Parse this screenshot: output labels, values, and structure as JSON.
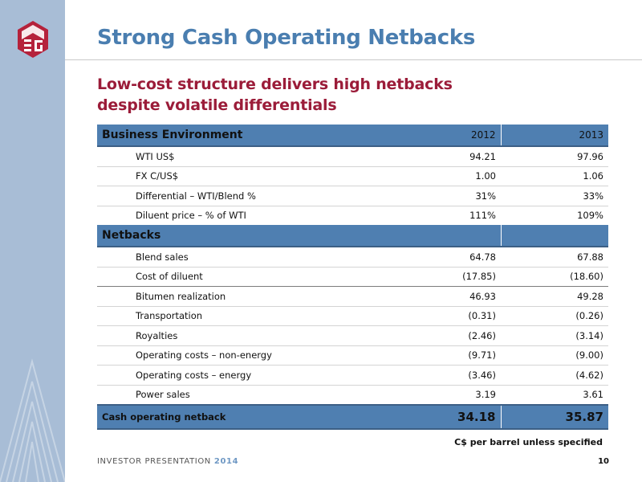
{
  "slide": {
    "title": "Strong Cash Operating Netbacks",
    "subtitle_line1": "Low-cost structure delivers high netbacks",
    "subtitle_line2": "despite volatile differentials",
    "note": "C$ per barrel unless specified",
    "footer_label": "INVESTOR PRESENTATION",
    "footer_year": "2014",
    "page_number": "10"
  },
  "colors": {
    "accent_blue": "#4f7fb1",
    "title_blue": "#4a7eb0",
    "subtitle_red": "#9b1c39",
    "sidebar": "#a8bdd6",
    "logo_red": "#b5223b"
  },
  "table": {
    "business_environment": {
      "label": "Business Environment",
      "col1": "2012",
      "col2": "2013",
      "rows": [
        {
          "label": "WTI US$",
          "v1": "94.21",
          "v2": "97.96"
        },
        {
          "label": "FX C/US$",
          "v1": "1.00",
          "v2": "1.06"
        },
        {
          "label": "Differential – WTI/Blend %",
          "v1": "31%",
          "v2": "33%"
        },
        {
          "label": "Diluent price – % of WTI",
          "v1": "111%",
          "v2": "109%"
        }
      ]
    },
    "netbacks": {
      "label": "Netbacks",
      "rows": [
        {
          "label": "Blend sales",
          "v1": "64.78",
          "v2": "67.88"
        },
        {
          "label": "Cost of diluent",
          "v1": "(17.85)",
          "v2": "(18.60)"
        },
        {
          "label": "Bitumen realization",
          "v1": "46.93",
          "v2": "49.28"
        },
        {
          "label": "Transportation",
          "v1": "(0.31)",
          "v2": "(0.26)"
        },
        {
          "label": "Royalties",
          "v1": "(2.46)",
          "v2": "(3.14)"
        },
        {
          "label": "Operating costs – non-energy",
          "v1": "(9.71)",
          "v2": "(9.00)"
        },
        {
          "label": "Operating costs – energy",
          "v1": "(3.46)",
          "v2": "(4.62)"
        },
        {
          "label": "Power sales",
          "v1": "3.19",
          "v2": "3.61"
        }
      ]
    },
    "total": {
      "label": "Cash operating netback",
      "v1": "34.18",
      "v2": "35.87"
    }
  }
}
